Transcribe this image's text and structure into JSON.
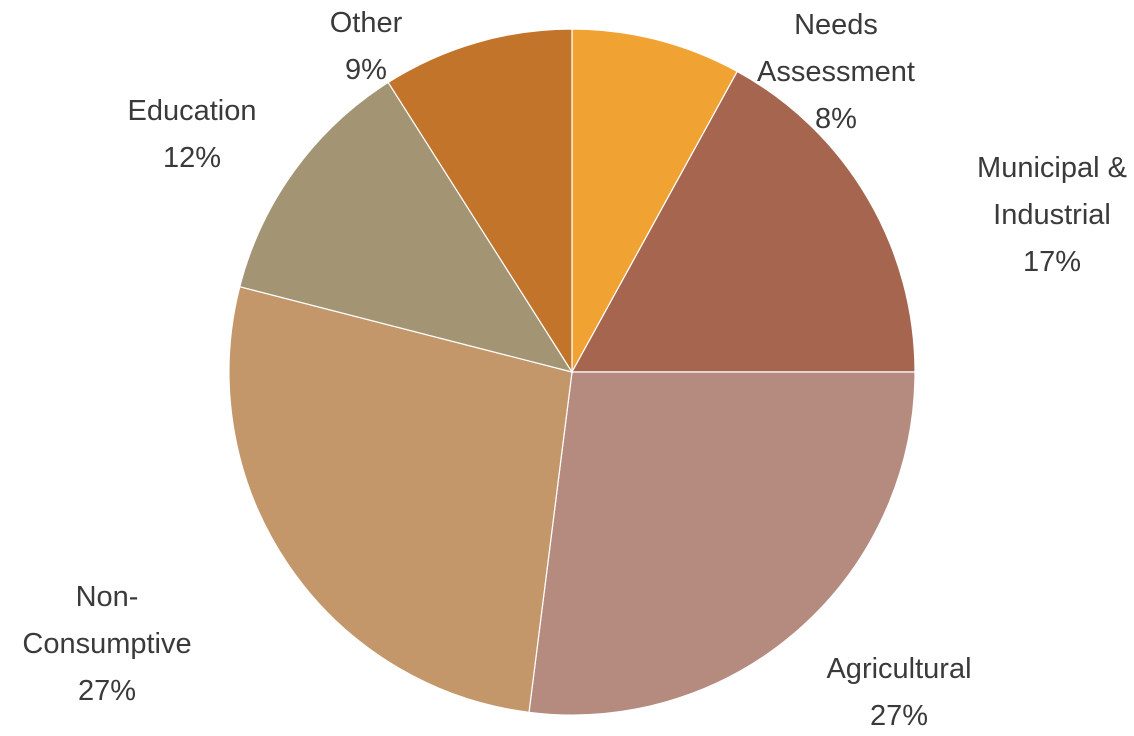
{
  "chart_data": {
    "type": "pie",
    "title": "",
    "start_angle_deg": 0,
    "direction": "clockwise",
    "legend": "none",
    "slices": [
      {
        "label_lines": [
          "Needs",
          "Assessment"
        ],
        "value": 8,
        "percent_label": "8%",
        "color": "#F0A332"
      },
      {
        "label_lines": [
          "Municipal &",
          "Industrial"
        ],
        "value": 17,
        "percent_label": "17%",
        "color": "#A5654F"
      },
      {
        "label_lines": [
          "Agricultural"
        ],
        "value": 27,
        "percent_label": "27%",
        "color": "#B58A7F"
      },
      {
        "label_lines": [
          "Non-",
          "Consumptive"
        ],
        "value": 27,
        "percent_label": "27%",
        "color": "#C4976B"
      },
      {
        "label_lines": [
          "Education"
        ],
        "value": 12,
        "percent_label": "12%",
        "color": "#A39473"
      },
      {
        "label_lines": [
          "Other"
        ],
        "value": 9,
        "percent_label": "9%",
        "color": "#C1742A"
      }
    ]
  }
}
